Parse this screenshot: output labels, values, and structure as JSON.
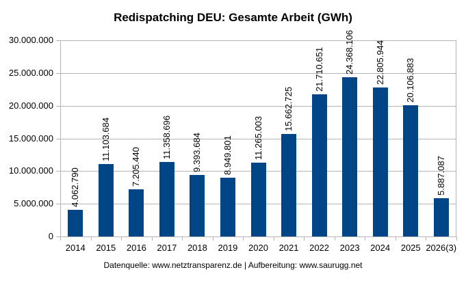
{
  "chart_data": {
    "type": "bar",
    "title": "Redispatching DEU: Gesamte Arbeit (GWh)",
    "xlabel": "",
    "ylabel": "",
    "ylim": [
      0,
      30000000
    ],
    "yticks": [
      0,
      5000000,
      10000000,
      15000000,
      20000000,
      25000000,
      30000000
    ],
    "ytick_labels": [
      "0",
      "5.000.000",
      "10.000.000",
      "15.000.000",
      "20.000.000",
      "25.000.000",
      "30.000.000"
    ],
    "grid": true,
    "legend": null,
    "bar_color": "#004586",
    "categories": [
      "2014",
      "2015",
      "2016",
      "2017",
      "2018",
      "2019",
      "2020",
      "2021",
      "2022",
      "2023",
      "2024",
      "2025",
      "2026(3)"
    ],
    "values": [
      4062790,
      11103684,
      7205440,
      11358696,
      9393684,
      8949801,
      11265003,
      15662725,
      21710651,
      24368106,
      22805944,
      20106883,
      5887087
    ],
    "value_labels": [
      "4.062.790",
      "11.103.684",
      "7.205.440",
      "11.358.696",
      "9.393.684",
      "8.949.801",
      "11.265.003",
      "15.662.725",
      "21.710.651",
      "24.368.106",
      "22.805.944",
      "20.106.883",
      "5.887.087"
    ],
    "footer": "Datenquelle: www.netztransparenz.de  | Aufbereitung: www.saurugg.net"
  }
}
